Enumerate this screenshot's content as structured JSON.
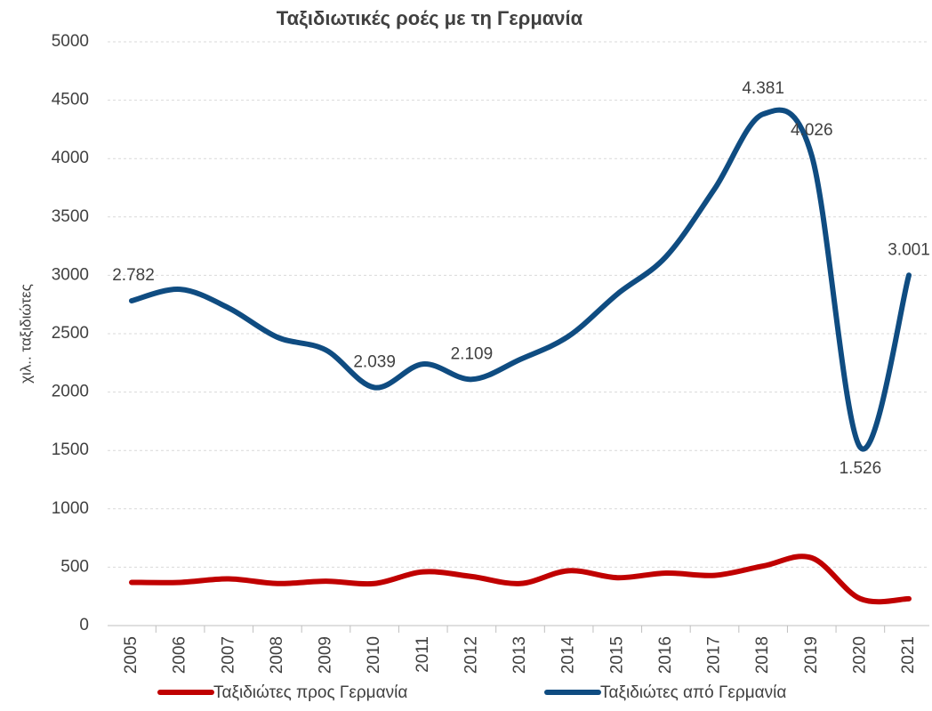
{
  "chart_data": {
    "type": "line",
    "title": "Ταξιδιωτικές ροές με τη Γερμανία",
    "y_label": "χιλ.. ταξιδιώτες",
    "categories": [
      "2005",
      "2006",
      "2007",
      "2008",
      "2009",
      "2010",
      "2011",
      "2012",
      "2013",
      "2014",
      "2015",
      "2016",
      "2017",
      "2018",
      "2019",
      "2020",
      "2021"
    ],
    "series": [
      {
        "name": "Ταξιδιώτες προς Γερμανία",
        "color": "#c00000",
        "values": [
          370,
          370,
          400,
          360,
          380,
          360,
          460,
          420,
          360,
          470,
          410,
          450,
          430,
          510,
          580,
          230,
          230
        ]
      },
      {
        "name": "Ταξιδιώτες από Γερμανία",
        "color": "#0f4c81",
        "values": [
          2782,
          2880,
          2720,
          2470,
          2360,
          2039,
          2240,
          2109,
          2280,
          2480,
          2840,
          3160,
          3740,
          4381,
          4026,
          1526,
          3001
        ],
        "value_labels": [
          "2.782",
          null,
          null,
          null,
          null,
          "2.039",
          null,
          "2.109",
          null,
          null,
          null,
          null,
          null,
          "4.381",
          "4.026",
          "1.526",
          "3.001"
        ]
      }
    ],
    "ylim": [
      0,
      5000
    ],
    "yticks": [
      0,
      500,
      1000,
      1500,
      2000,
      2500,
      3000,
      3500,
      4000,
      4500,
      5000
    ],
    "grid": true,
    "legend": "bottom"
  }
}
